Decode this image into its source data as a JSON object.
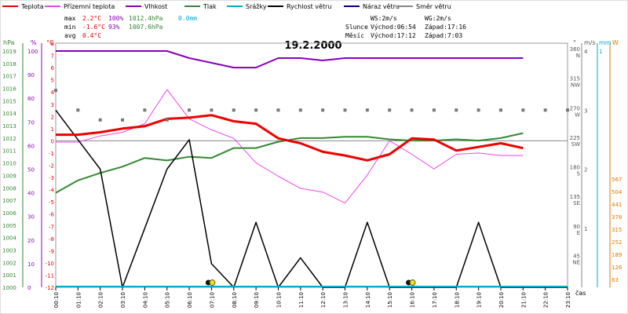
{
  "chart_data": {
    "type": "line",
    "title": "19.2.2000",
    "legend": {
      "placement": "top",
      "items": [
        {
          "label": "Teplota",
          "color": "#ee0000"
        },
        {
          "label": "Přízemní teplota",
          "color": "#ee44ee"
        },
        {
          "label": "Vlhkost",
          "color": "#8800bb"
        },
        {
          "label": "Tlak",
          "color": "#338833"
        },
        {
          "label": "Srážky",
          "color": "#00aacc"
        },
        {
          "label": "Rychlost větru",
          "color": "#000000"
        },
        {
          "label": "Náraz větru",
          "color": "#000088"
        },
        {
          "label": "Směr větru",
          "color": "#888888"
        }
      ]
    },
    "stats": {
      "max": {
        "label": "max",
        "temp": "2.2°C",
        "hum": "100%",
        "press": "1012.4hPa",
        "rain": "0.0mm"
      },
      "min": {
        "label": "min",
        "temp": "-1.6°C",
        "hum": "93%",
        "press": "1007.6hPa"
      },
      "avg": {
        "label": "avg",
        "temp": "0.4°C"
      }
    },
    "wind_info": {
      "ws": "WS:2m/s",
      "wg": "WG:2m/s"
    },
    "sun": {
      "label": "Slunce",
      "rise": "Východ:06:54",
      "set": "Západ:17:16"
    },
    "moon": {
      "label": "Měsíc",
      "rise": "Východ:17:12",
      "set": "Západ:7:03"
    },
    "x_axis": {
      "ticks": [
        "00:10",
        "01:10",
        "02:10",
        "03:10",
        "04:10",
        "05:10",
        "06:10",
        "07:10",
        "08:10",
        "09:10",
        "10:10",
        "11:10",
        "12:10",
        "13:10",
        "14:10",
        "15:10",
        "16:10",
        "17:10",
        "18:10",
        "19:10",
        "20:10",
        "21:10",
        "22:10",
        "23:10"
      ],
      "unit_label": "čas"
    },
    "axes": {
      "hpa": {
        "unit": "hPa",
        "color": "#338833",
        "ticks": [
          1019,
          1018,
          1017,
          1016,
          1015,
          1014,
          1013,
          1012,
          1011,
          1010,
          1009,
          1008,
          1007,
          1006,
          1005,
          1004,
          1003,
          1002,
          1001,
          1000
        ]
      },
      "pct": {
        "unit": "%",
        "color": "#8800bb",
        "ticks": [
          100,
          90,
          80,
          70,
          60,
          50,
          40,
          30,
          20,
          10,
          0
        ]
      },
      "temp": {
        "unit": "°C",
        "color": "#ee0000",
        "ticks": [
          8,
          7,
          6,
          5,
          4,
          3,
          2,
          1,
          0,
          -1,
          -2,
          -3,
          -4,
          -5,
          -6,
          -7,
          -8,
          -9,
          -10,
          -11,
          -12
        ],
        "range": [
          -12,
          8
        ]
      },
      "dir": {
        "unit": "°",
        "ticks": [
          {
            "deg": 360,
            "name": "N"
          },
          {
            "deg": 315,
            "name": "NW"
          },
          {
            "deg": 270,
            "name": "W"
          },
          {
            "deg": 225,
            "name": "SW"
          },
          {
            "deg": 180,
            "name": "S"
          },
          {
            "deg": 135,
            "name": "SE"
          },
          {
            "deg": 90,
            "name": "E"
          },
          {
            "deg": 45,
            "name": "NE"
          }
        ]
      },
      "ms": {
        "unit": "m/s",
        "ticks": [
          4,
          3,
          2,
          1
        ]
      },
      "mm": {
        "unit": "mm",
        "ticks": [
          1
        ]
      },
      "w": {
        "unit": "W",
        "color": "#dd7700",
        "ticks": [
          567,
          504,
          441,
          378,
          315,
          252,
          189,
          126,
          63
        ]
      }
    },
    "series": [
      {
        "name": "Teplota",
        "color": "#ee0000",
        "unit": "°C",
        "values": [
          0.5,
          0.5,
          0.7,
          1.0,
          1.2,
          1.8,
          1.9,
          2.1,
          1.6,
          1.4,
          0.2,
          -0.2,
          -0.9,
          -1.2,
          -1.6,
          -1.1,
          0.2,
          0.1,
          -0.8,
          -0.5,
          -0.2,
          -0.6
        ]
      },
      {
        "name": "Přízemní teplota",
        "color": "#ee44ee",
        "unit": "°C",
        "values": [
          -0.1,
          -0.1,
          0.4,
          0.7,
          1.4,
          4.2,
          1.8,
          0.9,
          0.2,
          -1.8,
          -2.9,
          -3.9,
          -4.2,
          -5.1,
          -2.8,
          0.0,
          -1.1,
          -2.3,
          -1.1,
          -1.0,
          -1.2,
          -1.2
        ]
      },
      {
        "name": "Vlhkost",
        "color": "#8800bb",
        "unit": "%",
        "values": [
          100,
          100,
          100,
          100,
          100,
          100,
          97,
          95,
          93,
          93,
          97,
          97,
          96,
          97,
          97,
          97,
          97,
          97,
          97,
          97,
          97,
          97
        ]
      },
      {
        "name": "Tlak",
        "color": "#338833",
        "unit": "hPa",
        "values": [
          1007.6,
          1008.6,
          1009.2,
          1009.7,
          1010.4,
          1010.2,
          1010.5,
          1010.4,
          1011.2,
          1011.2,
          1011.7,
          1012.0,
          1012.0,
          1012.1,
          1012.1,
          1011.9,
          1011.8,
          1011.8,
          1011.9,
          1011.8,
          1012.0,
          1012.4
        ]
      },
      {
        "name": "Rychlost větru",
        "color": "#000000",
        "unit": "m/s",
        "values": [
          3,
          2.5,
          2,
          0,
          1,
          2,
          2.5,
          0.4,
          0,
          1.1,
          0,
          0.5,
          0,
          0,
          1.1,
          0,
          0,
          0,
          0,
          1.1,
          0,
          0,
          0,
          0
        ]
      },
      {
        "name": "Směr větru",
        "color": "#888888",
        "unit": "°",
        "values": [
          "",
          "",
          "",
          "",
          "",
          "",
          "",
          "",
          "",
          "",
          "",
          "",
          "",
          "",
          "",
          "",
          "",
          "",
          "",
          "",
          "",
          "",
          "",
          ""
        ]
      }
    ],
    "wind_direction_deg": [
      300,
      270,
      255,
      255,
      270,
      255,
      270,
      270,
      270,
      270,
      270,
      270,
      270,
      270,
      270,
      270,
      270,
      270,
      270,
      270,
      270,
      270,
      270,
      270
    ]
  }
}
